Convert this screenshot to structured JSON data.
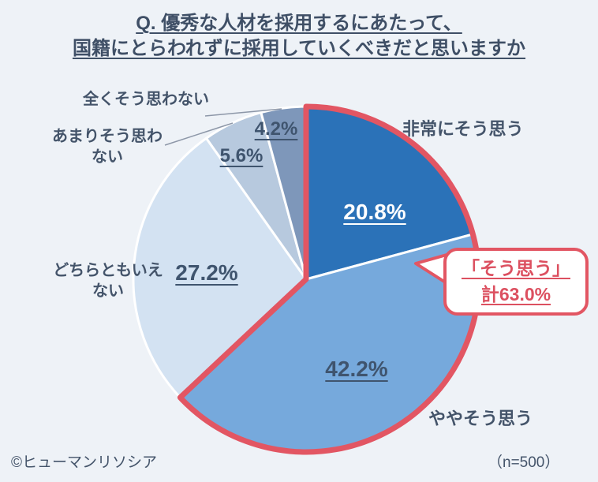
{
  "title": {
    "line1": "Q. 優秀な人材を採用するにあたって、",
    "line2": "国籍にとらわれずに採用していくべきだと思いますか"
  },
  "chart_data": {
    "type": "pie",
    "start_angle": "12-o'clock",
    "direction": "clockwise",
    "slices": [
      {
        "name": "非常にそう思う",
        "value": 20.8,
        "pct_label": "20.8%",
        "color": "#2b72b8"
      },
      {
        "name": "ややそう思う",
        "value": 42.2,
        "pct_label": "42.2%",
        "color": "#76a9dc"
      },
      {
        "name": "どちらともいえない",
        "value": 27.2,
        "pct_label": "27.2%",
        "color": "#d3e2f2"
      },
      {
        "name": "あまりそう思わない",
        "value": 5.6,
        "pct_label": "5.6%",
        "color": "#b7c9de"
      },
      {
        "name": "全くそう思わない",
        "value": 4.2,
        "pct_label": "4.2%",
        "color": "#7e97ba"
      }
    ],
    "agree_total": {
      "label_line1": "「そう思う」",
      "label_line2": "計63.0%",
      "value": 63.0,
      "covers_first_n_slices": 2,
      "outline_color": "#e25663"
    }
  },
  "footer": {
    "copyright": "©ヒューマンリソシア",
    "sample_size": "（n=500）"
  }
}
